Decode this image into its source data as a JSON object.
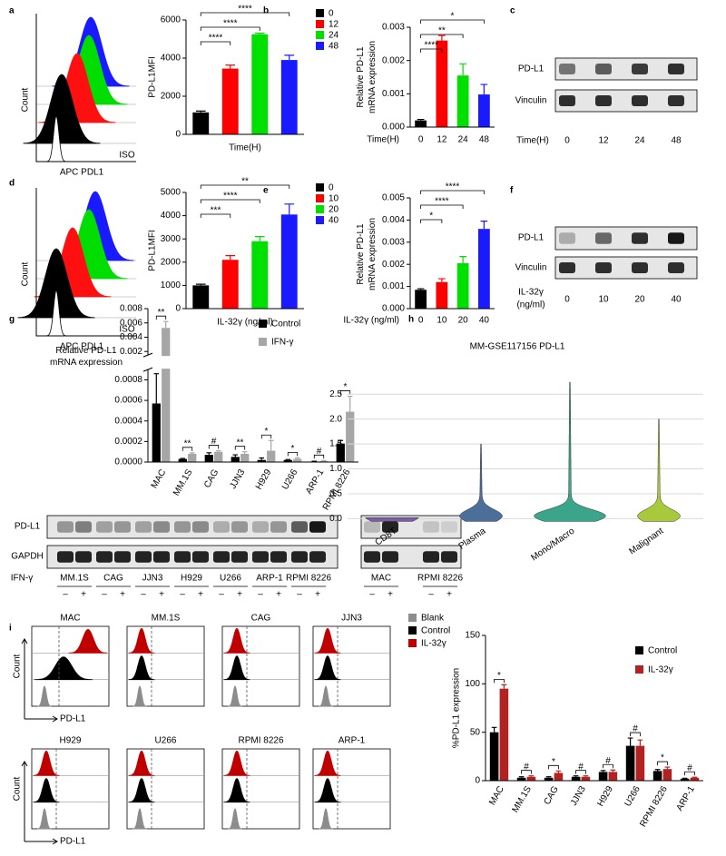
{
  "panels": [
    "a",
    "b",
    "c",
    "d",
    "e",
    "f",
    "g",
    "h",
    "i"
  ],
  "flow_a": {
    "ylabel": "Count",
    "xlabel": "APC PDL1",
    "label": "ISO"
  },
  "flow_d": {
    "ylabel": "Count",
    "xlabel": "APC PDL1",
    "label": "ISO"
  },
  "blot_c": {
    "rows": [
      "PD-L1",
      "Vinculin"
    ],
    "xlabel": "Time(H)",
    "lanes": [
      "0",
      "12",
      "24",
      "48"
    ]
  },
  "blot_f": {
    "rows": [
      "PD-L1",
      "Vinculin"
    ],
    "xlabel": [
      "IL-32γ",
      "(ng/ml)"
    ],
    "lanes": [
      "0",
      "10",
      "20",
      "40"
    ]
  },
  "blot_g": {
    "rows": [
      "PD-L1",
      "GAPDH"
    ],
    "xlabel": "IFN-γ",
    "groups": [
      "MM.1S",
      "CAG",
      "JJN3",
      "H929",
      "U266",
      "ARP-1",
      "RPMI 8226",
      "MAC",
      "RPMI 8226"
    ],
    "signs": [
      "–",
      "+"
    ]
  },
  "flow_i": {
    "titles": [
      "MAC",
      "MM.1S",
      "CAG",
      "JJN3",
      "H929",
      "U266",
      "RPMI 8226",
      "ARP-1"
    ],
    "ylabel": "Count",
    "xlabel": "PD-L1",
    "legend": [
      "Blank",
      "Control",
      "IL-32γ"
    ]
  },
  "chart_data": [
    {
      "type": "bar",
      "ylabel": "PD-L1MFI",
      "xlabel": "Time(H)",
      "categories": [
        "0",
        "12",
        "24",
        "48"
      ],
      "values": [
        1150,
        3450,
        5250,
        3900
      ],
      "errors": [
        70,
        180,
        60,
        250
      ],
      "colors": [
        "#000000",
        "#ff0000",
        "#00e000",
        "#1a1aff"
      ],
      "ylim": [
        0,
        6000
      ],
      "yticks": [
        0,
        2000,
        4000,
        6000
      ],
      "legend": "right",
      "annotations": [
        "****",
        "****",
        "****"
      ],
      "bracket": "from-first"
    },
    {
      "type": "bar",
      "ylabel": [
        "Relative PD-L1",
        "mRNA expression"
      ],
      "xlabel": "Time(H)",
      "categories": [
        "0",
        "12",
        "24",
        "48"
      ],
      "values": [
        0.0002,
        0.0026,
        0.00155,
        0.00098
      ],
      "errors": [
        3e-05,
        0.00015,
        0.00035,
        0.0003
      ],
      "colors": [
        "#000000",
        "#ff0000",
        "#00e000",
        "#1a1aff"
      ],
      "ylim": [
        0,
        0.003
      ],
      "yticks": [
        {
          "value": 0,
          "label": "0.000"
        },
        0.001,
        0.002,
        0.003
      ],
      "annotations": [
        "****",
        "**",
        "*"
      ],
      "bracket": "from-first"
    },
    {
      "type": "bar",
      "ylabel": "PD-L1MFI",
      "xlabel": "IL-32γ (ng/ml)",
      "categories": [
        "0",
        "10",
        "20",
        "40"
      ],
      "values": [
        1000,
        2100,
        2900,
        4050
      ],
      "errors": [
        50,
        180,
        200,
        450
      ],
      "colors": [
        "#000000",
        "#ff0000",
        "#00e000",
        "#1a1aff"
      ],
      "ylim": [
        0,
        5000
      ],
      "yticks": [
        0,
        1000,
        2000,
        3000,
        4000,
        5000
      ],
      "legend": "right",
      "annotations": [
        "***",
        "****",
        "**"
      ],
      "bracket": "from-first"
    },
    {
      "type": "bar",
      "ylabel": [
        "Relative PD-L1",
        "mRNA expression"
      ],
      "xlabel": "IL-32γ (ng/ml)",
      "categories": [
        "0",
        "10",
        "20",
        "40"
      ],
      "values": [
        0.00085,
        0.0012,
        0.00205,
        0.0036
      ],
      "errors": [
        5e-05,
        0.00015,
        0.0003,
        0.00035
      ],
      "colors": [
        "#000000",
        "#ff0000",
        "#00e000",
        "#1a1aff"
      ],
      "ylim": [
        0,
        0.005
      ],
      "yticks": [
        {
          "value": 0,
          "label": "0.000"
        },
        0.001,
        0.002,
        0.003,
        0.004,
        0.005
      ],
      "annotations": [
        "*",
        "****",
        "****"
      ],
      "bracket": "from-first"
    },
    {
      "type": "bar",
      "ylabel": [
        "Relative PD-L1",
        "mRNA expression"
      ],
      "categories": [
        "MAC",
        "MM.1S",
        "CAG",
        "JJN3",
        "H929",
        "U266",
        "ARP-1",
        "RPMI 8226"
      ],
      "series": [
        {
          "name": "Control",
          "color": "#000000",
          "values": [
            0.00057,
            3e-05,
            7e-05,
            5e-05,
            2e-05,
            2e-05,
            5e-06,
            0.00018
          ],
          "errors": [
            0.00029,
            5e-06,
            2e-05,
            2e-05,
            2e-05,
            5e-06,
            3e-06,
            3e-05
          ]
        },
        {
          "name": "IFN-γ",
          "color": "#a6a6a6",
          "values": [
            0.0053,
            8e-05,
            0.0001,
            8e-05,
            0.00011,
            3e-05,
            1e-05,
            0.00049
          ],
          "errors": [
            0.0009,
            1e-05,
            1e-05,
            2e-05,
            0.0001,
            1e-05,
            5e-06,
            0.00015
          ]
        }
      ],
      "ylim": [
        0,
        0.008
      ],
      "ybreak": [
        0.0009,
        0.0015
      ],
      "yticks": [
        {
          "value": 0,
          "label": "0.0000"
        },
        0.0002,
        0.0004,
        0.0006,
        0.0008,
        0.002,
        0.004,
        0.006,
        0.008
      ],
      "legend": "top-right",
      "annotations": [
        "**",
        "**",
        "#",
        "**",
        "*",
        "*",
        "#",
        "*"
      ],
      "bracket": "pairs"
    },
    {
      "type": "violin",
      "title": "MM-GSE117156  PD-L1",
      "categories": [
        "CD8T",
        "Plasma",
        "Mono/Macro",
        "Malignant"
      ],
      "values": [
        0.02,
        1.5,
        2.74,
        2.0
      ],
      "colors": [
        "#7b5ea7",
        "#4c6e9b",
        "#3aa58a",
        "#a8c93c"
      ],
      "ylim": [
        -0.12,
        2.85
      ],
      "yticks": [
        {
          "value": 0,
          "label": "0.0"
        },
        0.5,
        {
          "value": 1,
          "label": "1.0"
        },
        1.5,
        {
          "value": 2,
          "label": "2.0"
        },
        2.5
      ],
      "grid": true
    },
    {
      "type": "bar",
      "ylabel": "%PD-L1 expression",
      "categories": [
        "MAC",
        "MM.1S",
        "CAG",
        "JJN3",
        "H929",
        "U266",
        "RPMI 8226",
        "ARP-1"
      ],
      "series": [
        {
          "name": "Control",
          "color": "#000000",
          "values": [
            50,
            3,
            3,
            4,
            9,
            36,
            10,
            2
          ],
          "errors": [
            5,
            1,
            1,
            1,
            1.5,
            8,
            1.5,
            0.5
          ]
        },
        {
          "name": "IL-32γ",
          "color": "#b22222",
          "values": [
            95,
            4,
            8,
            4,
            9,
            36,
            12,
            3
          ],
          "errors": [
            4,
            1,
            2,
            1,
            2,
            6,
            2,
            0.5
          ]
        }
      ],
      "ylim": [
        0,
        150
      ],
      "yticks": [
        0,
        50,
        100,
        150
      ],
      "legend": "top-right",
      "annotations": [
        "*",
        "#",
        "*",
        "#",
        "#",
        "#",
        "*",
        "#"
      ],
      "bracket": "pairs"
    }
  ]
}
